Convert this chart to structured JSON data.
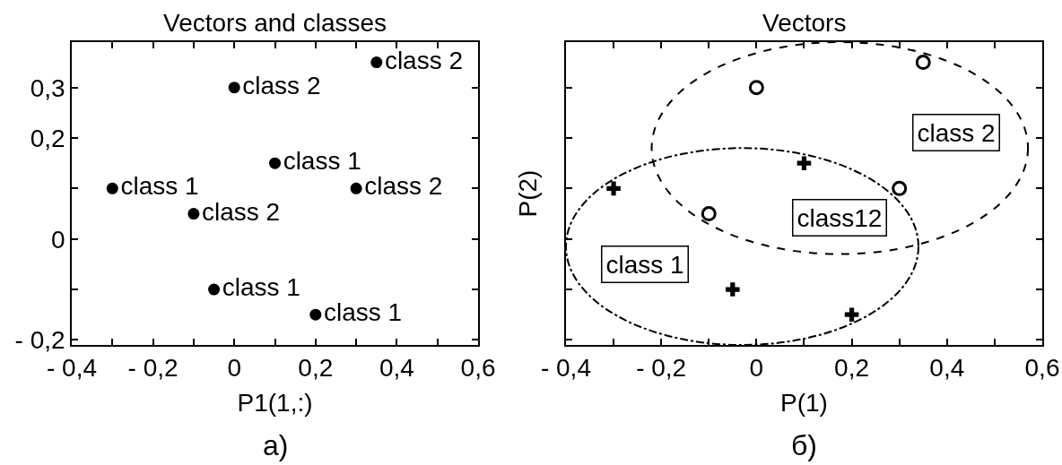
{
  "chart_data": [
    {
      "type": "scatter",
      "title": "Vectors and classes",
      "xlabel": "P1(1,:)",
      "marker": "circle",
      "series": [
        {
          "name": "class 1",
          "color": "#000000",
          "x": [
            -0.3,
            0.1,
            -0.05,
            0.2
          ],
          "values": [
            0.1,
            0.15,
            -0.1,
            -0.15
          ]
        },
        {
          "name": "class 2",
          "color": "#000000",
          "x": [
            -0.1,
            0,
            0.3,
            0.35
          ],
          "values": [
            0.05,
            0.3,
            0.1,
            0.35
          ]
        }
      ],
      "xlim": [
        -0.4,
        0.6
      ],
      "ylim": [
        -0.21,
        0.39
      ],
      "xticks": [
        {
          "value": -0.4,
          "label": "- 0,4"
        },
        {
          "value": -0.3,
          "label": null
        },
        {
          "value": -0.2,
          "label": "- 0,2"
        },
        {
          "value": -0.1,
          "label": null
        },
        0,
        {
          "value": 0.1,
          "label": null
        },
        {
          "value": 0.2,
          "label": "0,2"
        },
        {
          "value": 0.3,
          "label": null
        },
        {
          "value": 0.4,
          "label": "0,4"
        },
        {
          "value": 0.5,
          "label": null
        },
        {
          "value": 0.6,
          "label": "0,6"
        }
      ],
      "yticks": [
        {
          "value": -0.2,
          "label": "- 0,2"
        },
        {
          "value": -0.1,
          "label": null
        },
        0,
        {
          "value": 0.1,
          "label": null
        },
        {
          "value": 0.2,
          "label": "0,2"
        },
        {
          "value": 0.3,
          "label": "0,3"
        }
      ],
      "annotations": [
        "а)"
      ]
    },
    {
      "type": "scatter",
      "title": "Vectors",
      "xlabel": "P(1)",
      "ylabel": "P(2)",
      "tick_labels": "x",
      "series": [
        {
          "marker": "cross",
          "color": "#000000",
          "x": [
            -0.3,
            0.1,
            -0.05,
            0.2
          ],
          "values": [
            0.1,
            0.15,
            -0.1,
            -0.15
          ]
        },
        {
          "marker": "circle-open",
          "color": "#000000",
          "x": [
            -0.1,
            0,
            0.3,
            0.35
          ],
          "values": [
            0.05,
            0.3,
            0.1,
            0.35
          ]
        }
      ],
      "xlim": [
        -0.4,
        0.6
      ],
      "ylim": [
        -0.21,
        0.39
      ],
      "xticks": [
        {
          "value": -0.4,
          "label": "- 0,4"
        },
        {
          "value": -0.3,
          "label": null
        },
        {
          "value": -0.2,
          "label": "- 0,2"
        },
        {
          "value": -0.1,
          "label": null
        },
        0,
        {
          "value": 0.1,
          "label": null
        },
        {
          "value": 0.2,
          "label": "0,2"
        },
        {
          "value": 0.3,
          "label": null
        },
        {
          "value": 0.4,
          "label": "0,4"
        },
        {
          "value": 0.5,
          "label": null
        },
        {
          "value": 0.6,
          "label": "0,6"
        }
      ],
      "yticks": [
        {
          "value": -0.2,
          "label": null
        },
        {
          "value": -0.1,
          "label": null
        },
        {
          "value": 0,
          "label": null
        },
        {
          "value": 0.1,
          "label": null
        },
        {
          "value": 0.2,
          "label": null
        },
        {
          "value": 0.3,
          "label": null
        }
      ],
      "annotations": [
        "class 2",
        "class12",
        "class 1",
        "б)"
      ]
    }
  ]
}
